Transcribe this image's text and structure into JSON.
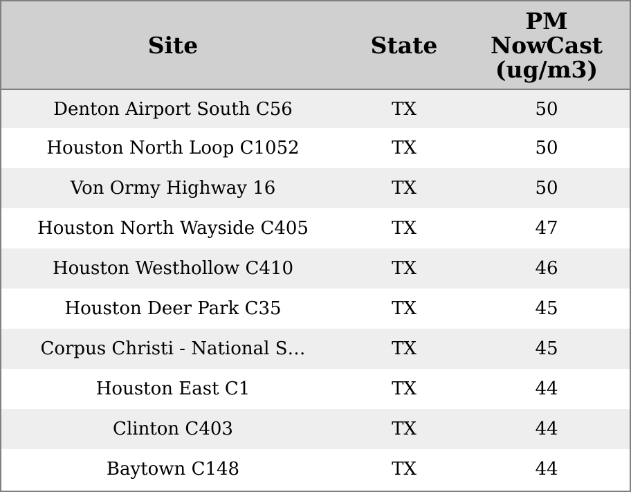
{
  "chart_data": {
    "type": "table",
    "columns": [
      "Site",
      "State",
      "PM NowCast (ug/m3)"
    ],
    "header_lines": {
      "site": "Site",
      "state": "State",
      "pm_line1": "PM",
      "pm_line2": "NowCast",
      "pm_line3": "(ug/m3)"
    },
    "rows": [
      {
        "site": "Denton Airport South C56",
        "state": "TX",
        "pm": "50"
      },
      {
        "site": "Houston North Loop C1052",
        "state": "TX",
        "pm": "50"
      },
      {
        "site": "Von Ormy Highway 16",
        "state": "TX",
        "pm": "50"
      },
      {
        "site": "Houston North Wayside C405",
        "state": "TX",
        "pm": "47"
      },
      {
        "site": "Houston Westhollow C410",
        "state": "TX",
        "pm": "46"
      },
      {
        "site": "Houston Deer Park C35",
        "state": "TX",
        "pm": "45"
      },
      {
        "site": "Corpus Christi - National S…",
        "state": "TX",
        "pm": "45"
      },
      {
        "site": "Houston East C1",
        "state": "TX",
        "pm": "44"
      },
      {
        "site": "Clinton C403",
        "state": "TX",
        "pm": "44"
      },
      {
        "site": "Baytown C148",
        "state": "TX",
        "pm": "44"
      }
    ],
    "colors": {
      "header_background": "#d0d0d0",
      "odd_row_background": "#eeeeee",
      "even_row_background": "#ffffff",
      "border": "#808080"
    }
  }
}
